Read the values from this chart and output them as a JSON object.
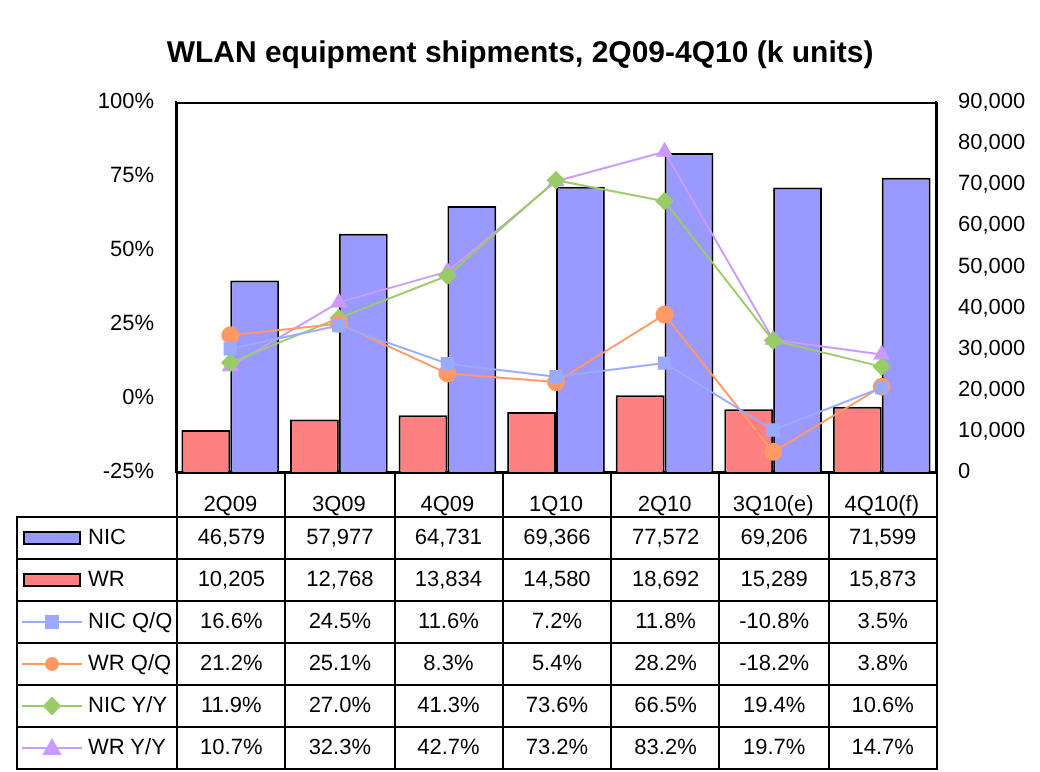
{
  "chart_data": {
    "type": "line",
    "title": "WLAN equipment shipments, 2Q09-4Q10 (k units)",
    "categories": [
      "2Q09",
      "3Q09",
      "4Q09",
      "1Q10",
      "2Q10",
      "3Q10(e)",
      "4Q10(f)"
    ],
    "series": [
      {
        "name": "NIC",
        "type": "bar",
        "axis": "y2",
        "color": "#9999ff",
        "values": [
          46579,
          57977,
          64731,
          69366,
          77572,
          69206,
          71599
        ],
        "value_labels": [
          "46,579",
          "57,977",
          "64,731",
          "69,366",
          "77,572",
          "69,206",
          "71,599"
        ]
      },
      {
        "name": "WR",
        "type": "bar",
        "axis": "y2",
        "color": "#ff8080",
        "values": [
          10205,
          12768,
          13834,
          14580,
          18692,
          15289,
          15873
        ],
        "value_labels": [
          "10,205",
          "12,768",
          "13,834",
          "14,580",
          "18,692",
          "15,289",
          "15,873"
        ]
      },
      {
        "name": "NIC Q/Q",
        "marker": "square",
        "color": "#99aaff",
        "values": [
          16.6,
          24.5,
          11.6,
          7.2,
          11.8,
          -10.8,
          3.5
        ],
        "value_labels": [
          "16.6%",
          "24.5%",
          "11.6%",
          "7.2%",
          "11.8%",
          "-10.8%",
          "3.5%"
        ]
      },
      {
        "name": "WR Q/Q",
        "marker": "circle",
        "color": "#ff9966",
        "values": [
          21.2,
          25.1,
          8.3,
          5.4,
          28.2,
          -18.2,
          3.8
        ],
        "value_labels": [
          "21.2%",
          "25.1%",
          "8.3%",
          "5.4%",
          "28.2%",
          "-18.2%",
          "3.8%"
        ]
      },
      {
        "name": "NIC Y/Y",
        "marker": "diamond",
        "color": "#99cc66",
        "values": [
          11.9,
          27.0,
          41.3,
          73.6,
          66.5,
          19.4,
          10.6
        ],
        "value_labels": [
          "11.9%",
          "27.0%",
          "41.3%",
          "73.6%",
          "66.5%",
          "19.4%",
          "10.6%"
        ]
      },
      {
        "name": "WR Y/Y",
        "marker": "triangle",
        "color": "#cc99ff",
        "values": [
          10.7,
          32.3,
          42.7,
          73.2,
          83.2,
          19.7,
          14.7
        ],
        "value_labels": [
          "10.7%",
          "32.3%",
          "42.7%",
          "73.2%",
          "83.2%",
          "19.7%",
          "14.7%"
        ]
      }
    ],
    "ylim": [
      -25,
      100
    ],
    "yticks": [
      {
        "value": -25,
        "label": "-25%"
      },
      {
        "value": 0,
        "label": "0%"
      },
      {
        "value": 25,
        "label": "25%"
      },
      {
        "value": 50,
        "label": "50%"
      },
      {
        "value": 75,
        "label": "75%"
      },
      {
        "value": 100,
        "label": "100%"
      }
    ],
    "y2lim": [
      0,
      90000
    ],
    "y2ticks": [
      0,
      {
        "value": 10000,
        "label": "10,000"
      },
      {
        "value": 20000,
        "label": "20,000"
      },
      {
        "value": 30000,
        "label": "30,000"
      },
      {
        "value": 40000,
        "label": "40,000"
      },
      {
        "value": 50000,
        "label": "50,000"
      },
      {
        "value": 60000,
        "label": "60,000"
      },
      {
        "value": 70000,
        "label": "70,000"
      },
      {
        "value": 80000,
        "label": "80,000"
      },
      {
        "value": 90000,
        "label": "90,000"
      }
    ],
    "grid": false,
    "legend": "bottom"
  }
}
